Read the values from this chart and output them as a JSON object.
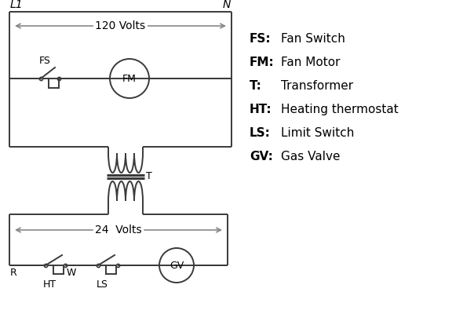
{
  "bg_color": "#ffffff",
  "line_color": "#3a3a3a",
  "arrow_color": "#888888",
  "text_color": "#000000",
  "legend": [
    [
      "FS:",
      "Fan Switch"
    ],
    [
      "FM:",
      "Fan Motor"
    ],
    [
      "T:",
      "Transformer"
    ],
    [
      "HT:",
      "Heating thermostat"
    ],
    [
      "LS:",
      "Limit Switch"
    ],
    [
      "GV:",
      "Gas Valve"
    ]
  ],
  "L1_label": "L1",
  "N_label": "N",
  "volts120": "120 Volts",
  "volts24": "24  Volts",
  "T_label": "T",
  "R_label": "R",
  "W_label": "W",
  "FS_label": "FS",
  "FM_label": "FM",
  "HT_label": "HT",
  "LS_label": "LS",
  "GV_label": "GV"
}
